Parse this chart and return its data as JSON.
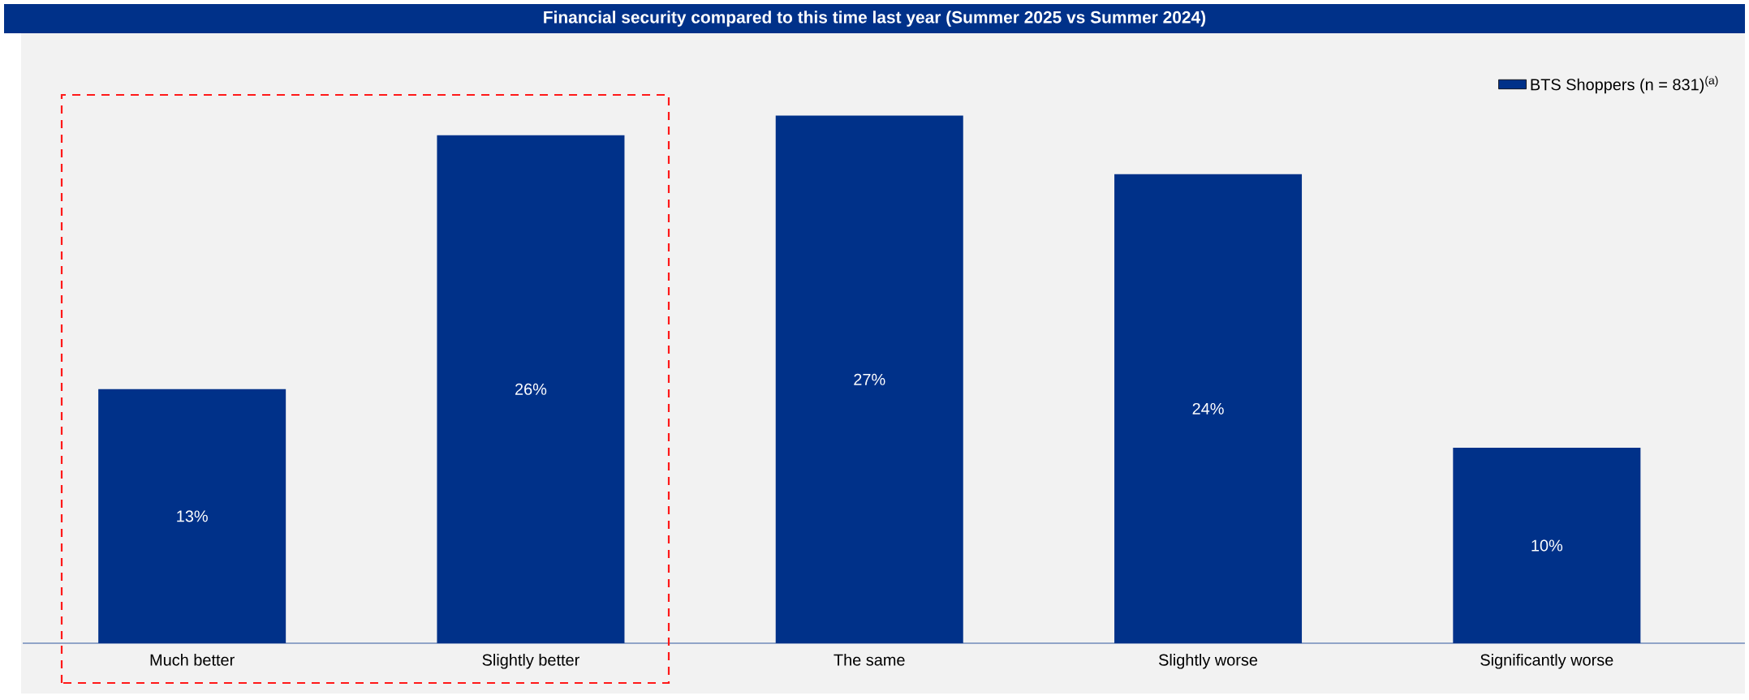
{
  "chart_data": {
    "type": "bar",
    "title": "Financial security compared to this time last year (Summer 2025 vs Summer 2024)",
    "categories": [
      "Much better",
      "Slightly better",
      "The same",
      "Slightly worse",
      "Significantly worse"
    ],
    "series": [
      {
        "name": "BTS Shoppers (n = 831)$^{(a)}$",
        "color": "#003189",
        "values": [
          13,
          26,
          27,
          24,
          10
        ],
        "value_labels": [
          "13%",
          "26%",
          "27%",
          "24%",
          "10%"
        ]
      }
    ],
    "legend": "top right"
  }
}
